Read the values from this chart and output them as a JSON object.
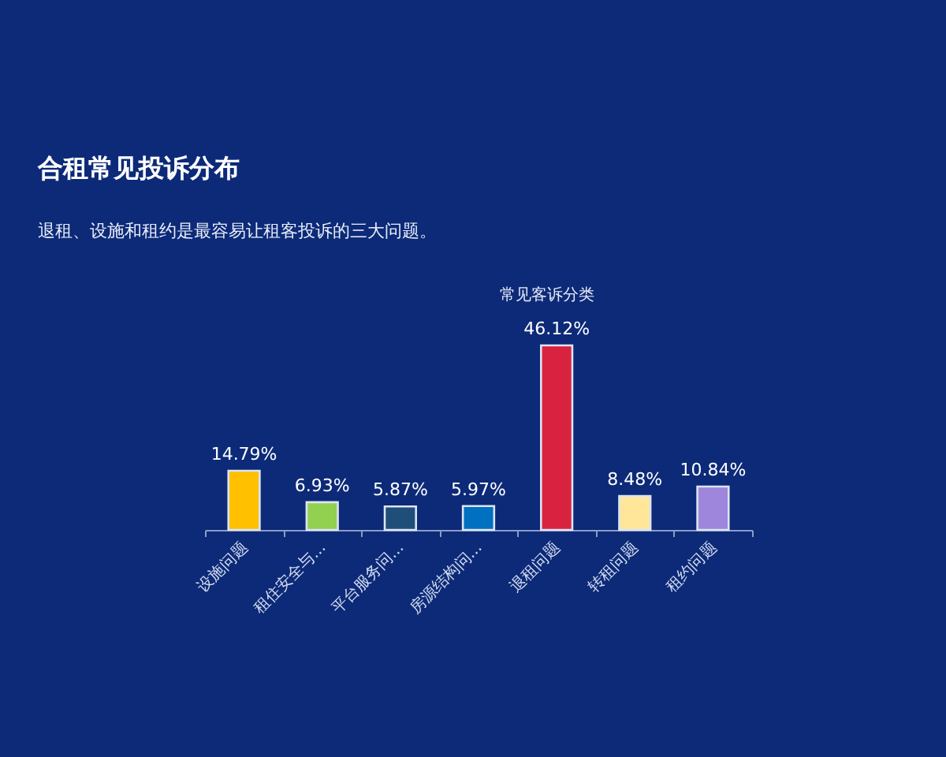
{
  "chart_data": {
    "type": "bar",
    "title": "合租常见投诉分布",
    "subtitle": "退租、设施和租约是最容易让租客投诉的三大问题。",
    "annotations": [
      "常见客诉分类"
    ],
    "categories": [
      "设施问题",
      "租住安全与...",
      "平台服务问...",
      "房源结构问...",
      "退租问题",
      "转租问题",
      "租约问题"
    ],
    "values": [
      14.79,
      6.93,
      5.87,
      5.97,
      46.12,
      8.48,
      10.84
    ],
    "colors": [
      "#ffc000",
      "#92d050",
      "#1f4e79",
      "#0070c0",
      "#d9223f",
      "#ffe699",
      "#9e86dc"
    ],
    "value_labels": [
      "14.79%",
      "6.93%",
      "5.87%",
      "5.97%",
      "46.12%",
      "8.48%",
      "10.84%"
    ]
  }
}
